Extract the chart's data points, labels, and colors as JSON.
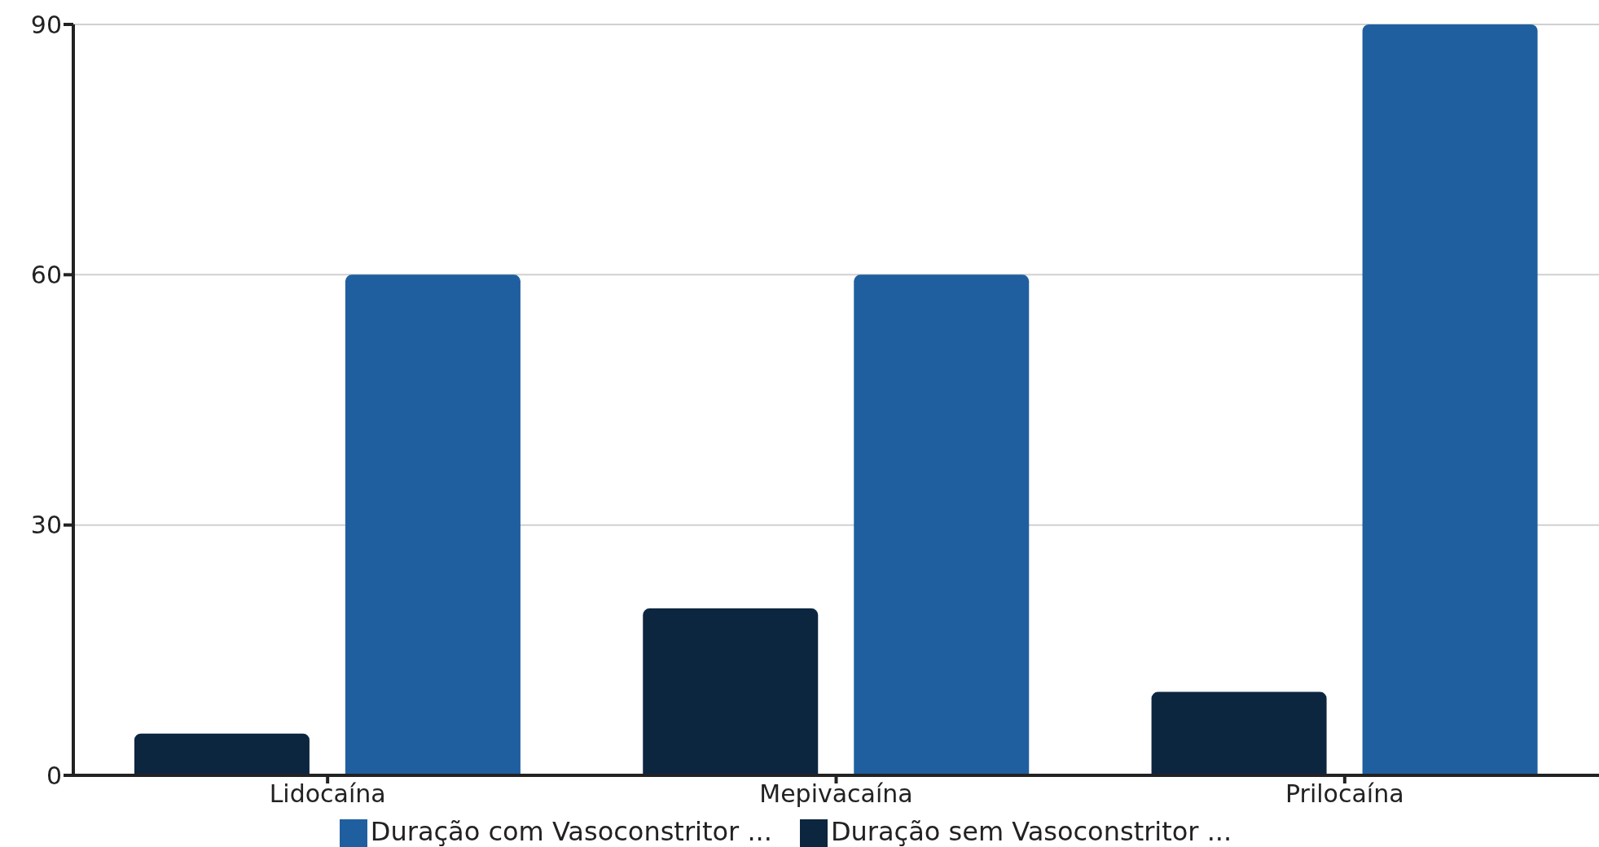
{
  "chart_data": {
    "type": "bar",
    "categories": [
      "Lidocaína",
      "Mepivacaína",
      "Prilocaína"
    ],
    "series": [
      {
        "name": "Duração sem Vasoconstritor ...",
        "color": "#0d2640",
        "values": [
          5,
          20,
          10
        ]
      },
      {
        "name": "Duração com Vasoconstritor ...",
        "color": "#1f5fa0",
        "values": [
          60,
          60,
          90
        ]
      }
    ],
    "ylim": [
      0,
      90
    ],
    "yticks": [
      0,
      30,
      60,
      90
    ],
    "grid": "y",
    "legend": "bottom"
  }
}
